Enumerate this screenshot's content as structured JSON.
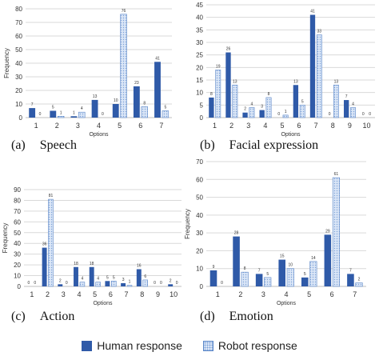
{
  "colors": {
    "human": "#2f5aa8",
    "robot_fill": "#dbe6f7",
    "robot_stroke": "#5a86c8",
    "grid": "#d9d9d9",
    "axis": "#bfbfbf",
    "text": "#333333"
  },
  "legend": {
    "human": "Human response",
    "robot": "Robot response"
  },
  "chart_data": [
    {
      "type": "bar",
      "panel_label": "(a)",
      "caption": "Speech",
      "title": "",
      "xlabel": "Options",
      "ylabel": "Frequency",
      "ylim": [
        0,
        80
      ],
      "yticks": [
        0,
        10,
        20,
        30,
        40,
        50,
        60,
        70,
        80
      ],
      "grid": true,
      "categories": [
        "1",
        "2",
        "3",
        "4",
        "5",
        "6",
        "7"
      ],
      "series": [
        {
          "name": "Human response",
          "values": [
            7,
            5,
            1,
            13,
            10,
            23,
            41
          ]
        },
        {
          "name": "Robot response",
          "values": [
            0,
            1,
            4,
            0,
            76,
            8,
            5
          ]
        }
      ]
    },
    {
      "type": "bar",
      "panel_label": "(b)",
      "caption": "Facial expression",
      "title": "",
      "xlabel": "Options",
      "ylabel": "",
      "ylim": [
        0,
        45
      ],
      "yticks": [
        0,
        5,
        10,
        15,
        20,
        25,
        30,
        35,
        40,
        45
      ],
      "grid": true,
      "categories": [
        "1",
        "2",
        "3",
        "4",
        "5",
        "6",
        "7",
        "8",
        "9",
        "10"
      ],
      "series": [
        {
          "name": "Human response",
          "values": [
            8,
            26,
            2,
            3,
            0,
            13,
            41,
            0,
            7,
            0
          ]
        },
        {
          "name": "Robot response",
          "values": [
            19,
            13,
            4,
            8,
            1,
            5,
            33,
            13,
            4,
            0
          ]
        }
      ]
    },
    {
      "type": "bar",
      "panel_label": "(c)",
      "caption": "Action",
      "title": "",
      "xlabel": "Options",
      "ylabel": "Frequency",
      "ylim": [
        0,
        90
      ],
      "yticks": [
        0,
        10,
        20,
        30,
        40,
        50,
        60,
        70,
        80,
        90
      ],
      "grid": true,
      "categories": [
        "1",
        "2",
        "3",
        "4",
        "5",
        "6",
        "7",
        "8",
        "9",
        "10"
      ],
      "series": [
        {
          "name": "Human response",
          "values": [
            0,
            36,
            2,
            18,
            18,
            5,
            3,
            16,
            0,
            2
          ]
        },
        {
          "name": "Robot response",
          "values": [
            0,
            81,
            0,
            4,
            4,
            5,
            1,
            6,
            0,
            0
          ]
        }
      ]
    },
    {
      "type": "bar",
      "panel_label": "(d)",
      "caption": "Emotion",
      "title": "",
      "xlabel": "Options",
      "ylabel": "Frequency",
      "ylim": [
        0,
        70
      ],
      "yticks": [
        0,
        10,
        20,
        30,
        40,
        50,
        60,
        70
      ],
      "grid": true,
      "categories": [
        "1",
        "2",
        "3",
        "4",
        "5",
        "6",
        "7"
      ],
      "series": [
        {
          "name": "Human response",
          "values": [
            9,
            28,
            7,
            15,
            5,
            29,
            7
          ]
        },
        {
          "name": "Robot response",
          "values": [
            0,
            8,
            5,
            10,
            14,
            61,
            2
          ]
        }
      ]
    }
  ]
}
